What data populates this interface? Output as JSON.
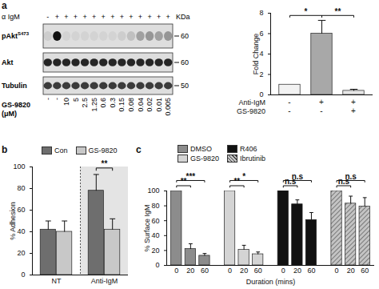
{
  "panel_labels": [
    "a",
    "b",
    "c"
  ],
  "blot": {
    "treatment_row": {
      "label": "α IgM",
      "values": [
        "-",
        "+",
        "+",
        "+",
        "+",
        "+",
        "+",
        "+",
        "+",
        "+",
        "+",
        "+",
        "+",
        "+"
      ]
    },
    "dose_label": [
      "GS-9820",
      "(μM)"
    ],
    "doses": [
      "-",
      "-",
      "10",
      "5",
      "2.5",
      "1.25",
      "0.6",
      "0.3",
      "0.15",
      "0.08",
      "0.04",
      "0.02",
      "0.01",
      "0.005"
    ],
    "size_unit": "KDa",
    "bands": [
      {
        "label": "pAkt",
        "superscript": "S473",
        "kda": 60,
        "intensity": [
          0.08,
          1,
          0.05,
          0.05,
          0.05,
          0.05,
          0.05,
          0.05,
          0.08,
          0.15,
          0.3,
          0.35,
          0.3,
          0.35
        ]
      },
      {
        "label": "Akt",
        "kda": 60,
        "intensity": [
          0.9,
          0.9,
          0.9,
          0.9,
          0.9,
          0.9,
          0.9,
          0.9,
          0.9,
          0.9,
          0.9,
          0.9,
          0.9,
          0.9
        ]
      },
      {
        "label": "Tubulin",
        "kda": 50,
        "intensity": [
          0.8,
          0.8,
          0.8,
          0.8,
          0.8,
          0.8,
          0.8,
          0.8,
          0.8,
          0.8,
          0.8,
          0.8,
          0.8,
          0.8
        ]
      }
    ]
  },
  "chart_data": [
    {
      "type": "bar",
      "ylabel": "Fold Change",
      "ylim": [
        0,
        8
      ],
      "yticks": [
        0,
        2,
        4,
        6,
        8
      ],
      "values": [
        1,
        6,
        0.4
      ],
      "errors": [
        0,
        1.3,
        0.15
      ],
      "colors": [
        "#f2f2f2",
        "#a8a8a8",
        "#e6e6e6"
      ],
      "conditions": [
        {
          "label": "Anti-IgM",
          "values": [
            "-",
            "+",
            "+"
          ]
        },
        {
          "label": "GS-9820",
          "values": [
            "-",
            "-",
            "+"
          ]
        }
      ],
      "significance": [
        {
          "from": 0,
          "to": 1,
          "label": "*"
        },
        {
          "from": 1,
          "to": 2,
          "label": "**"
        }
      ]
    },
    {
      "type": "bar",
      "ylabel": "% Adhesion",
      "ylim": [
        0,
        100
      ],
      "yticks": [
        0,
        20,
        40,
        60,
        80,
        100
      ],
      "categories": [
        "NT",
        "Anti-IgM"
      ],
      "series": [
        {
          "name": "Con",
          "color": "#6e6e6e",
          "values": [
            42,
            78
          ],
          "errors": [
            8,
            15
          ]
        },
        {
          "name": "GS-9820",
          "color": "#c8c8c8",
          "values": [
            40,
            42
          ],
          "errors": [
            10,
            10
          ]
        }
      ],
      "legend": "top",
      "regions": [
        {
          "category": 1
        }
      ],
      "significance": [
        {
          "category": 1,
          "label": "**"
        }
      ]
    },
    {
      "type": "bar",
      "ylabel": "% Surface IgM",
      "xlabel": "Duration (mins)",
      "ylim": [
        0,
        100
      ],
      "yticks": [
        0,
        20,
        40,
        60,
        80,
        100
      ],
      "categories": [
        0,
        20,
        60
      ],
      "series": [
        {
          "name": "DMSO",
          "color": "#8c8c8c",
          "values": [
            100,
            22,
            13
          ],
          "errors": [
            0,
            7,
            3
          ],
          "significance": [
            {
              "from": 0,
              "to": 1,
              "label": "**"
            },
            {
              "from": 0,
              "to": 2,
              "label": "***"
            }
          ]
        },
        {
          "name": "GS-9820",
          "color": "#d4d4d4",
          "values": [
            100,
            21,
            15
          ],
          "errors": [
            0,
            6,
            3
          ],
          "significance": [
            {
              "from": 0,
              "to": 1,
              "label": "**"
            },
            {
              "from": 0,
              "to": 2,
              "label": "*"
            }
          ]
        },
        {
          "name": "R406",
          "color": "#111111",
          "values": [
            100,
            82,
            61
          ],
          "errors": [
            0,
            6,
            10
          ],
          "significance": [
            {
              "from": 0,
              "to": 1,
              "label": "n.s"
            },
            {
              "from": 0,
              "to": 2,
              "label": "n.s"
            }
          ]
        },
        {
          "name": "Ibrutinib",
          "color": "#c4c4c4",
          "line_style": "hatched",
          "values": [
            100,
            83,
            79
          ],
          "errors": [
            0,
            10,
            12
          ],
          "significance": [
            {
              "from": 0,
              "to": 1,
              "label": "n.s"
            },
            {
              "from": 0,
              "to": 2,
              "label": "n.s"
            }
          ]
        }
      ],
      "legend": "top-left"
    }
  ]
}
